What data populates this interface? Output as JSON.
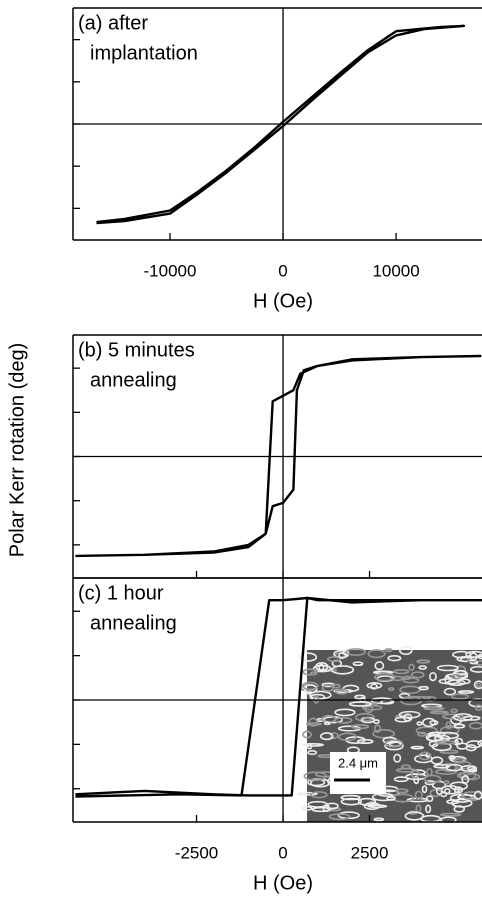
{
  "chart_data": [
    {
      "type": "line",
      "annotation": [
        "(a) after",
        "implantation"
      ],
      "x_label": "H (Oe)",
      "xlim": [
        -18580,
        17600
      ],
      "xticks": [
        -10000,
        0,
        10000
      ],
      "ylim": [
        -1.1,
        1.1
      ],
      "yticks": [
        -0.8,
        -0.4,
        0,
        0.4,
        0.8
      ],
      "series": [
        {
          "color": "#000000",
          "x": [
            -16500,
            -14000,
            -10000,
            -7500,
            -5000,
            -2500,
            0,
            2500,
            5000,
            7500,
            10000,
            12500,
            16000,
            14000,
            10000,
            7500,
            5000,
            2500,
            0,
            -2500,
            -5000,
            -7500,
            -10000,
            -14000,
            -16500
          ],
          "values": [
            -0.94,
            -0.92,
            -0.85,
            -0.66,
            -0.46,
            -0.24,
            -0.02,
            0.22,
            0.45,
            0.68,
            0.84,
            0.9,
            0.93,
            0.92,
            0.88,
            0.7,
            0.48,
            0.25,
            0.02,
            -0.22,
            -0.44,
            -0.64,
            -0.82,
            -0.9,
            -0.93
          ]
        }
      ]
    },
    {
      "type": "line",
      "annotation": [
        "(b) 5 minutes",
        "annealing"
      ],
      "xlim": [
        -6070,
        5750
      ],
      "xticks": [
        -2500,
        0,
        2500
      ],
      "ylim": [
        -1.1,
        1.1
      ],
      "yticks": [
        -0.8,
        -0.4,
        0,
        0.4,
        0.8
      ],
      "series": [
        {
          "color": "#000000",
          "x": [
            -6000,
            -4000,
            -2000,
            -1000,
            -500,
            -300,
            0,
            300,
            400,
            600,
            1000,
            2000,
            4000,
            5700,
            4000,
            2000,
            1000,
            500,
            300,
            0,
            -300,
            -400,
            -500,
            -1000,
            -2000,
            -4000,
            -6000
          ],
          "values": [
            -0.9,
            -0.89,
            -0.86,
            -0.8,
            -0.7,
            -0.45,
            -0.42,
            -0.3,
            0.6,
            0.78,
            0.82,
            0.88,
            0.9,
            0.91,
            0.9,
            0.87,
            0.82,
            0.75,
            0.6,
            0.55,
            0.5,
            -0.1,
            -0.7,
            -0.82,
            -0.87,
            -0.89,
            -0.9
          ]
        }
      ]
    },
    {
      "type": "line",
      "annotation": [
        "(c) 1 hour",
        "annealing"
      ],
      "x_label": "H (Oe)",
      "xlim": [
        -6070,
        5750
      ],
      "xticks": [
        -2500,
        0,
        2500
      ],
      "ylim": [
        -1.1,
        1.1
      ],
      "yticks": [
        -0.8,
        -0.4,
        0,
        0.4,
        0.8
      ],
      "inset_scale": "2.4 μm",
      "series": [
        {
          "color": "#000000",
          "x": [
            -6000,
            -4000,
            -2000,
            -1000,
            0,
            250,
            700,
            2000,
            4000,
            5750,
            3000,
            1000,
            700,
            0,
            -400,
            -1200,
            -3000,
            -6000
          ],
          "values": [
            -0.85,
            -0.82,
            -0.85,
            -0.86,
            -0.86,
            -0.86,
            0.92,
            0.88,
            0.9,
            0.9,
            0.9,
            0.9,
            0.92,
            0.9,
            0.9,
            -0.86,
            -0.85,
            -0.87
          ]
        }
      ]
    }
  ],
  "y_label": "Polar Kerr rotation (deg)"
}
